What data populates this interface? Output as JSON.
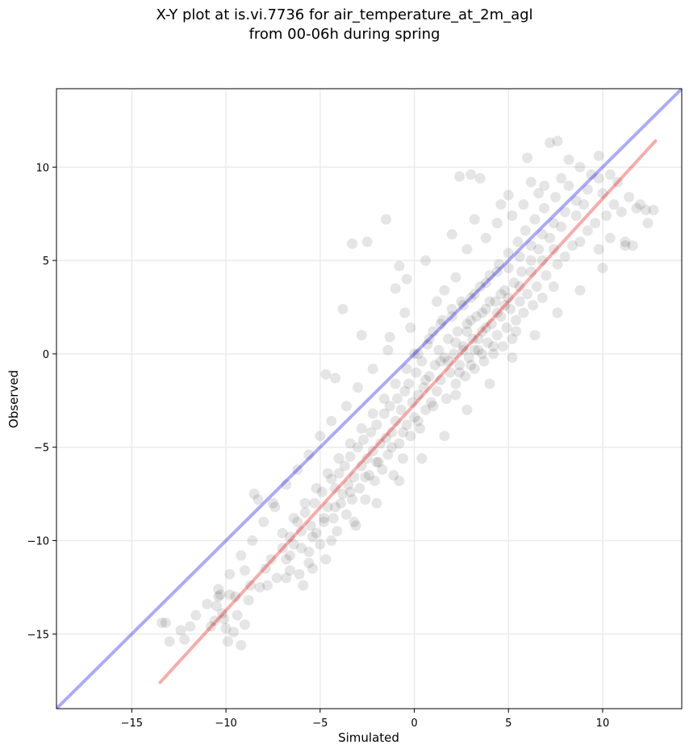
{
  "chart_data": {
    "type": "scatter",
    "title_line1": "X-Y plot at is.vi.7736 for air_temperature_at_2m_agl",
    "title_line2": "from 00-06h during spring",
    "xlabel": "Simulated",
    "ylabel": "Observed",
    "xlim": [
      -19,
      14.2
    ],
    "ylim": [
      -19,
      14.2
    ],
    "xticks": [
      -15,
      -10,
      -5,
      0,
      5,
      10
    ],
    "yticks": [
      -15,
      -10,
      -5,
      0,
      5,
      10
    ],
    "xtick_labels": [
      "−15",
      "−10",
      "−5",
      "0",
      "5",
      "10"
    ],
    "ytick_labels": [
      "−15",
      "−10",
      "−5",
      "0",
      "5",
      "10"
    ],
    "grid": true,
    "point_color": "#000000",
    "point_opacity": 0.1,
    "identity_line": {
      "color": "#0000ee",
      "x": [
        -19,
        14.2
      ],
      "y": [
        -19,
        14.2
      ]
    },
    "regression_line": {
      "color": "#ee0000",
      "x": [
        -13.5,
        12.8
      ],
      "y": [
        -17.6,
        11.4
      ]
    },
    "points": [
      [
        -13.4,
        -14.4
      ],
      [
        -13.2,
        -14.4
      ],
      [
        -12.2,
        -15.3
      ],
      [
        -11.9,
        -14.6
      ],
      [
        -10.8,
        -14.6
      ],
      [
        -10.6,
        -14.3
      ],
      [
        -10.5,
        -13.5
      ],
      [
        -10.4,
        -13.0
      ],
      [
        -10.2,
        -13.9
      ],
      [
        -10.1,
        -14.2
      ],
      [
        -10.0,
        -14.7
      ],
      [
        -9.9,
        -15.4
      ],
      [
        -9.8,
        -12.9
      ],
      [
        -9.6,
        -14.9
      ],
      [
        -9.5,
        -13.0
      ],
      [
        -9.4,
        -14.0
      ],
      [
        -9.2,
        -15.6
      ],
      [
        -9.0,
        -14.5
      ],
      [
        -10.3,
        -12.9
      ],
      [
        -9.0,
        -11.6
      ],
      [
        -8.7,
        -12.4
      ],
      [
        -8.5,
        -7.5
      ],
      [
        -8.3,
        -7.8
      ],
      [
        -7.5,
        -8.0
      ],
      [
        -8.2,
        -12.5
      ],
      [
        -7.9,
        -11.5
      ],
      [
        -7.6,
        -11.0
      ],
      [
        -7.3,
        -12.0
      ],
      [
        -7.0,
        -10.4
      ],
      [
        -6.8,
        -11.0
      ],
      [
        -6.6,
        -9.8
      ],
      [
        -6.4,
        -10.2
      ],
      [
        -6.2,
        -9.0
      ],
      [
        -6.1,
        -11.8
      ],
      [
        -6.0,
        -9.5
      ],
      [
        -5.9,
        -12.4
      ],
      [
        -5.8,
        -8.5
      ],
      [
        -5.6,
        -10.6
      ],
      [
        -5.5,
        -9.2
      ],
      [
        -5.4,
        -11.5
      ],
      [
        -5.3,
        -8.0
      ],
      [
        -5.2,
        -9.6
      ],
      [
        -5.0,
        -10.2
      ],
      [
        -4.9,
        -7.4
      ],
      [
        -4.8,
        -9.0
      ],
      [
        -4.7,
        -11.0
      ],
      [
        -4.6,
        -8.2
      ],
      [
        -4.4,
        -6.7
      ],
      [
        -4.3,
        -8.8
      ],
      [
        -4.2,
        -7.2
      ],
      [
        -4.1,
        -9.5
      ],
      [
        -4.0,
        -6.4
      ],
      [
        -3.9,
        -8.0
      ],
      [
        -3.8,
        -7.5
      ],
      [
        -3.7,
        -6.0
      ],
      [
        -3.6,
        -8.6
      ],
      [
        -3.5,
        -7.0
      ],
      [
        -3.4,
        -5.5
      ],
      [
        -3.3,
        -7.8
      ],
      [
        -3.2,
        -6.6
      ],
      [
        -3.1,
        -9.2
      ],
      [
        -3.0,
        -5.0
      ],
      [
        -2.9,
        -7.2
      ],
      [
        -2.8,
        -6.0
      ],
      [
        -2.7,
        -4.6
      ],
      [
        -2.6,
        -7.8
      ],
      [
        -2.5,
        -5.6
      ],
      [
        -2.4,
        -6.5
      ],
      [
        -2.3,
        -4.2
      ],
      [
        -2.2,
        -5.2
      ],
      [
        -2.1,
        -6.8
      ],
      [
        -2.0,
        -3.8
      ],
      [
        -1.9,
        -5.8
      ],
      [
        -1.8,
        -4.8
      ],
      [
        -1.7,
        -6.2
      ],
      [
        -1.6,
        -3.2
      ],
      [
        -1.5,
        -4.5
      ],
      [
        -1.4,
        -5.4
      ],
      [
        -1.3,
        -2.8
      ],
      [
        -1.2,
        -4.2
      ],
      [
        -1.1,
        -6.5
      ],
      [
        -1.0,
        -3.6
      ],
      [
        -0.9,
        -2.4
      ],
      [
        -0.8,
        -4.8
      ],
      [
        -0.7,
        -3.0
      ],
      [
        -0.6,
        -5.6
      ],
      [
        -0.5,
        -2.0
      ],
      [
        -0.4,
        -3.8
      ],
      [
        -0.3,
        -1.6
      ],
      [
        -0.2,
        -4.4
      ],
      [
        -0.1,
        -2.6
      ],
      [
        0.0,
        -3.4
      ],
      [
        0.1,
        -1.0
      ],
      [
        0.2,
        -2.2
      ],
      [
        0.3,
        -4.0
      ],
      [
        0.4,
        -0.4
      ],
      [
        0.5,
        -1.8
      ],
      [
        0.6,
        -3.0
      ],
      [
        0.7,
        0.5
      ],
      [
        0.8,
        -1.2
      ],
      [
        0.9,
        -2.6
      ],
      [
        1.0,
        1.2
      ],
      [
        1.1,
        -0.6
      ],
      [
        1.2,
        -2.0
      ],
      [
        1.3,
        0.2
      ],
      [
        1.4,
        -1.4
      ],
      [
        1.5,
        1.8
      ],
      [
        1.6,
        -0.2
      ],
      [
        1.7,
        -2.4
      ],
      [
        1.8,
        0.8
      ],
      [
        1.9,
        -1.0
      ],
      [
        2.0,
        2.4
      ],
      [
        2.1,
        0.0
      ],
      [
        2.2,
        -1.6
      ],
      [
        2.3,
        1.2
      ],
      [
        2.4,
        -0.6
      ],
      [
        2.5,
        2.8
      ],
      [
        2.6,
        0.4
      ],
      [
        2.7,
        -1.2
      ],
      [
        2.8,
        1.6
      ],
      [
        2.9,
        -0.2
      ],
      [
        3.0,
        3.0
      ],
      [
        3.1,
        0.8
      ],
      [
        3.2,
        -0.8
      ],
      [
        3.3,
        2.0
      ],
      [
        3.4,
        0.2
      ],
      [
        3.5,
        3.6
      ],
      [
        3.6,
        1.2
      ],
      [
        3.7,
        -0.4
      ],
      [
        3.8,
        2.4
      ],
      [
        3.9,
        0.6
      ],
      [
        4.0,
        4.2
      ],
      [
        4.1,
        1.6
      ],
      [
        4.2,
        0.0
      ],
      [
        4.3,
        2.8
      ],
      [
        4.4,
        1.0
      ],
      [
        4.5,
        4.8
      ],
      [
        4.6,
        2.0
      ],
      [
        4.7,
        0.4
      ],
      [
        4.8,
        3.4
      ],
      [
        4.9,
        1.4
      ],
      [
        5.0,
        5.4
      ],
      [
        5.1,
        2.4
      ],
      [
        5.2,
        0.8
      ],
      [
        5.3,
        3.8
      ],
      [
        5.4,
        1.8
      ],
      [
        5.5,
        6.0
      ],
      [
        5.6,
        2.8
      ],
      [
        5.7,
        4.4
      ],
      [
        5.8,
        2.2
      ],
      [
        5.9,
        6.6
      ],
      [
        6.0,
        3.2
      ],
      [
        6.2,
        5.0
      ],
      [
        6.3,
        2.6
      ],
      [
        6.4,
        7.2
      ],
      [
        6.5,
        3.6
      ],
      [
        6.6,
        5.6
      ],
      [
        6.8,
        3.0
      ],
      [
        6.9,
        7.8
      ],
      [
        7.0,
        4.2
      ],
      [
        7.2,
        6.2
      ],
      [
        7.4,
        3.6
      ],
      [
        7.5,
        8.4
      ],
      [
        7.6,
        4.8
      ],
      [
        7.8,
        6.8
      ],
      [
        8.0,
        5.2
      ],
      [
        8.2,
        9.0
      ],
      [
        8.4,
        5.8
      ],
      [
        8.6,
        7.4
      ],
      [
        8.8,
        6.0
      ],
      [
        9.0,
        8.0
      ],
      [
        9.2,
        6.6
      ],
      [
        9.4,
        9.6
      ],
      [
        9.6,
        7.0
      ],
      [
        9.8,
        5.6
      ],
      [
        10.0,
        8.6
      ],
      [
        10.2,
        7.4
      ],
      [
        10.4,
        6.2
      ],
      [
        10.6,
        8.0
      ],
      [
        10.8,
        9.2
      ],
      [
        11.0,
        7.6
      ],
      [
        11.2,
        6.0
      ],
      [
        11.4,
        8.4
      ],
      [
        11.6,
        5.8
      ],
      [
        11.8,
        7.8
      ],
      [
        12.0,
        8.0
      ],
      [
        12.3,
        7.7
      ],
      [
        12.7,
        7.7
      ],
      [
        7.2,
        11.3
      ],
      [
        7.6,
        11.4
      ],
      [
        6.9,
        9.0
      ],
      [
        6.0,
        10.5
      ],
      [
        5.0,
        8.5
      ],
      [
        3.5,
        9.4
      ],
      [
        2.4,
        9.5
      ],
      [
        3.0,
        9.6
      ],
      [
        -1.5,
        7.2
      ],
      [
        -3.3,
        5.9
      ],
      [
        -2.5,
        6.0
      ],
      [
        -0.8,
        4.7
      ],
      [
        -1.0,
        3.5
      ],
      [
        -3.8,
        2.4
      ],
      [
        -2.8,
        1.0
      ],
      [
        -4.7,
        -1.1
      ],
      [
        -4.2,
        -1.3
      ],
      [
        -1.3,
        0.9
      ],
      [
        0.0,
        0.0
      ],
      [
        -0.5,
        2.2
      ],
      [
        1.6,
        3.4
      ],
      [
        2.2,
        4.1
      ],
      [
        2.8,
        5.6
      ],
      [
        3.8,
        6.2
      ],
      [
        4.4,
        7.0
      ],
      [
        5.2,
        7.4
      ],
      [
        5.8,
        8.0
      ],
      [
        6.6,
        8.6
      ],
      [
        7.8,
        9.4
      ],
      [
        8.8,
        10.0
      ],
      [
        9.8,
        10.6
      ],
      [
        8.2,
        10.4
      ],
      [
        6.2,
        9.2
      ],
      [
        4.6,
        8.0
      ],
      [
        3.2,
        7.2
      ],
      [
        2.0,
        6.4
      ],
      [
        0.6,
        5.0
      ],
      [
        -0.4,
        4.0
      ],
      [
        1.2,
        2.8
      ],
      [
        -0.2,
        1.4
      ],
      [
        -1.4,
        0.2
      ],
      [
        -2.2,
        -0.8
      ],
      [
        -3.0,
        -1.8
      ],
      [
        -3.6,
        -2.8
      ],
      [
        -4.4,
        -3.6
      ],
      [
        -5.0,
        -4.4
      ],
      [
        -5.6,
        -5.4
      ],
      [
        -6.2,
        -6.2
      ],
      [
        -6.8,
        -7.0
      ],
      [
        -7.4,
        -8.2
      ],
      [
        -8.0,
        -9.0
      ],
      [
        -8.6,
        -10.0
      ],
      [
        -9.2,
        -10.8
      ],
      [
        -9.8,
        -11.8
      ],
      [
        -10.4,
        -12.6
      ],
      [
        -11.0,
        -13.4
      ],
      [
        -11.6,
        -14.0
      ],
      [
        -12.4,
        -14.8
      ],
      [
        -13.0,
        -15.4
      ],
      [
        -7.0,
        -9.6
      ],
      [
        -6.4,
        -8.8
      ],
      [
        -5.8,
        -8.0
      ],
      [
        -5.2,
        -7.2
      ],
      [
        -4.6,
        -6.4
      ],
      [
        -4.0,
        -5.6
      ],
      [
        -3.4,
        -4.8
      ],
      [
        -2.8,
        -4.0
      ],
      [
        -2.2,
        -3.2
      ],
      [
        -1.6,
        -2.4
      ],
      [
        -1.0,
        -1.6
      ],
      [
        -0.4,
        -0.8
      ],
      [
        0.2,
        0.0
      ],
      [
        0.8,
        0.8
      ],
      [
        1.4,
        1.6
      ],
      [
        2.0,
        2.0
      ],
      [
        2.6,
        2.6
      ],
      [
        3.2,
        3.2
      ],
      [
        3.8,
        3.8
      ],
      [
        4.4,
        4.4
      ],
      [
        5.0,
        4.6
      ],
      [
        5.6,
        5.2
      ],
      [
        6.2,
        5.8
      ],
      [
        6.8,
        6.4
      ],
      [
        7.4,
        7.0
      ],
      [
        8.0,
        7.6
      ],
      [
        8.6,
        8.2
      ],
      [
        9.2,
        8.8
      ],
      [
        9.8,
        9.4
      ],
      [
        10.4,
        9.6
      ],
      [
        -6.8,
        -12.0
      ],
      [
        -5.6,
        -11.2
      ],
      [
        -4.4,
        -10.0
      ],
      [
        -3.2,
        -9.0
      ],
      [
        -2.0,
        -8.0
      ],
      [
        -0.8,
        -6.8
      ],
      [
        0.4,
        -5.6
      ],
      [
        1.6,
        -4.4
      ],
      [
        2.8,
        -3.0
      ],
      [
        4.0,
        -1.6
      ],
      [
        5.2,
        -0.2
      ],
      [
        6.4,
        1.0
      ],
      [
        7.6,
        2.2
      ],
      [
        8.8,
        3.4
      ],
      [
        10.0,
        4.6
      ],
      [
        11.2,
        5.8
      ],
      [
        12.4,
        7.0
      ],
      [
        -8.8,
        -13.2
      ],
      [
        -7.8,
        -12.4
      ],
      [
        -6.6,
        -11.6
      ],
      [
        2.4,
        -1.0
      ],
      [
        3.0,
        -0.6
      ],
      [
        3.6,
        0.0
      ],
      [
        4.2,
        0.4
      ],
      [
        2.6,
        0.2
      ],
      [
        3.4,
        0.8
      ],
      [
        1.8,
        -0.4
      ],
      [
        2.2,
        -2.2
      ],
      [
        1.0,
        -2.8
      ],
      [
        0.2,
        -3.6
      ],
      [
        -0.6,
        -4.2
      ],
      [
        -1.2,
        -5.0
      ],
      [
        -2.0,
        -5.8
      ],
      [
        -2.6,
        -6.6
      ],
      [
        -3.4,
        -7.4
      ],
      [
        -4.2,
        -8.2
      ],
      [
        -4.8,
        -8.8
      ],
      [
        -5.4,
        -9.8
      ],
      [
        -6.0,
        -10.4
      ],
      [
        -6.6,
        -10.8
      ],
      [
        3.8,
        1.4
      ],
      [
        4.4,
        2.2
      ],
      [
        5.0,
        3.0
      ],
      [
        5.6,
        3.6
      ],
      [
        6.2,
        4.4
      ],
      [
        6.8,
        5.0
      ],
      [
        7.4,
        5.6
      ],
      [
        3.0,
        1.8
      ],
      [
        2.2,
        0.6
      ],
      [
        1.4,
        -0.4
      ],
      [
        0.6,
        -1.4
      ],
      [
        4.8,
        2.6
      ],
      [
        5.4,
        1.2
      ],
      [
        3.6,
        2.2
      ],
      [
        2.8,
        1.2
      ],
      [
        4.0,
        2.8
      ],
      [
        3.2,
        0.2
      ],
      [
        4.6,
        3.2
      ]
    ]
  }
}
